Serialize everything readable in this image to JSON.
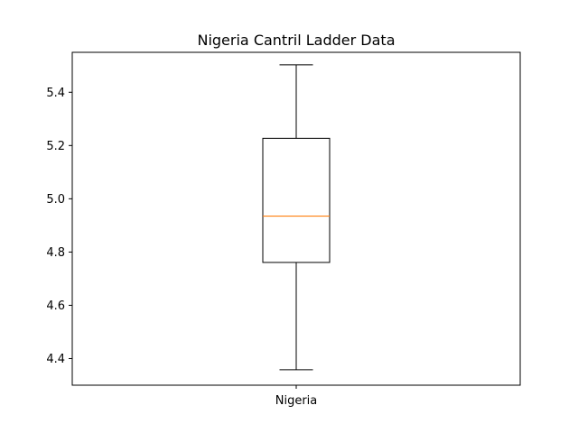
{
  "chart_data": {
    "type": "box",
    "title": "Nigeria Cantril Ladder Data",
    "xlabel": "",
    "ylabel": "",
    "categories": [
      "Nigeria"
    ],
    "boxes": [
      {
        "category": "Nigeria",
        "whisker_low": 4.358,
        "q1": 4.761,
        "median": 4.935,
        "q3": 5.227,
        "whisker_high": 5.503
      }
    ],
    "ylim": [
      4.3,
      5.55
    ],
    "y_ticks": [
      4.4,
      4.6,
      4.8,
      5.0,
      5.2,
      5.4
    ],
    "grid": false,
    "legend": "none",
    "colors": {
      "box": "#000000",
      "median": "#ff7f0e",
      "whisker": "#000000",
      "axes": "#000000"
    }
  }
}
